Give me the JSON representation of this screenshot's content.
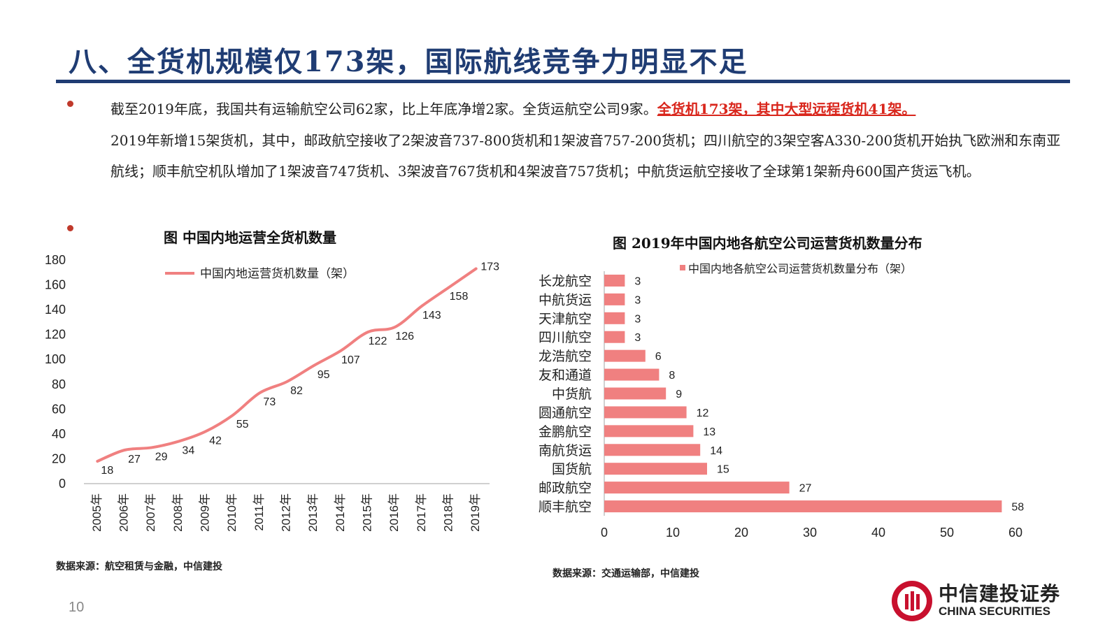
{
  "title": "八、全货机规模仅173架，国际航线竞争力明显不足",
  "body": {
    "para1_a": "截至2019年底，我国共有运输航空公司62家，比上年底净增2家。全货运航空公司9家。",
    "para1_hl": "全货机173架，其中大型远程货机41架。",
    "para1_b": "2019年新增15架货机，其中，邮政航空接收了2架波音737-800货机和1架波音757-200货机；四川航空的3架空客A330-200货机开始执飞欧洲和东南亚航线；顺丰航空机队增加了1架波音747货机、3架波音767货机和4架波音757货机；中航货运航空接收了全球第1架新舟600国产货运飞机。"
  },
  "colors": {
    "primary": "#1f3c73",
    "accent": "#d9261c",
    "line": "#f08080",
    "bar": "#f08080"
  },
  "left_chart": {
    "title": "图 中国内地运营全货机数量",
    "source": "数据来源：航空租赁与金融，中信建投"
  },
  "right_chart": {
    "title": "图 2019年中国内地各航空公司运营货机数量分布",
    "source": "数据来源：交通运输部，中信建投"
  },
  "chart_data": [
    {
      "type": "line",
      "title": "中国内地运营全货机数量",
      "x": [
        "2005年",
        "2006年",
        "2007年",
        "2008年",
        "2009年",
        "2010年",
        "2011年",
        "2012年",
        "2013年",
        "2014年",
        "2015年",
        "2016年",
        "2017年",
        "2018年",
        "2019年"
      ],
      "series": [
        {
          "name": "中国内地运营货机数量（架）",
          "values": [
            18,
            27,
            29,
            34,
            42,
            55,
            73,
            82,
            95,
            107,
            122,
            126,
            143,
            158,
            173
          ]
        }
      ],
      "yticks": [
        0,
        20,
        40,
        60,
        80,
        100,
        120,
        140,
        160,
        180
      ],
      "ylim": [
        0,
        180
      ],
      "grid": false,
      "legend": "top-left"
    },
    {
      "type": "bar",
      "orientation": "horizontal",
      "title": "2019年中国内地各航空公司运营货机数量分布",
      "categories": [
        "长龙航空",
        "中航货运",
        "天津航空",
        "四川航空",
        "龙浩航空",
        "友和通道",
        "中货航",
        "圆通航空",
        "金鹏航空",
        "南航货运",
        "国货航",
        "邮政航空",
        "顺丰航空"
      ],
      "series": [
        {
          "name": "中国内地各航空公司运营货机数量分布（架）",
          "values": [
            3,
            3,
            3,
            3,
            6,
            8,
            9,
            12,
            13,
            14,
            15,
            27,
            58
          ]
        }
      ],
      "xticks": [
        0,
        10,
        20,
        30,
        40,
        50,
        60
      ],
      "xlim": [
        0,
        60
      ],
      "grid": false,
      "legend": "top"
    }
  ],
  "page_number": "10",
  "logo": {
    "cn": "中信建投证券",
    "en": "CHINA SECURITIES"
  }
}
